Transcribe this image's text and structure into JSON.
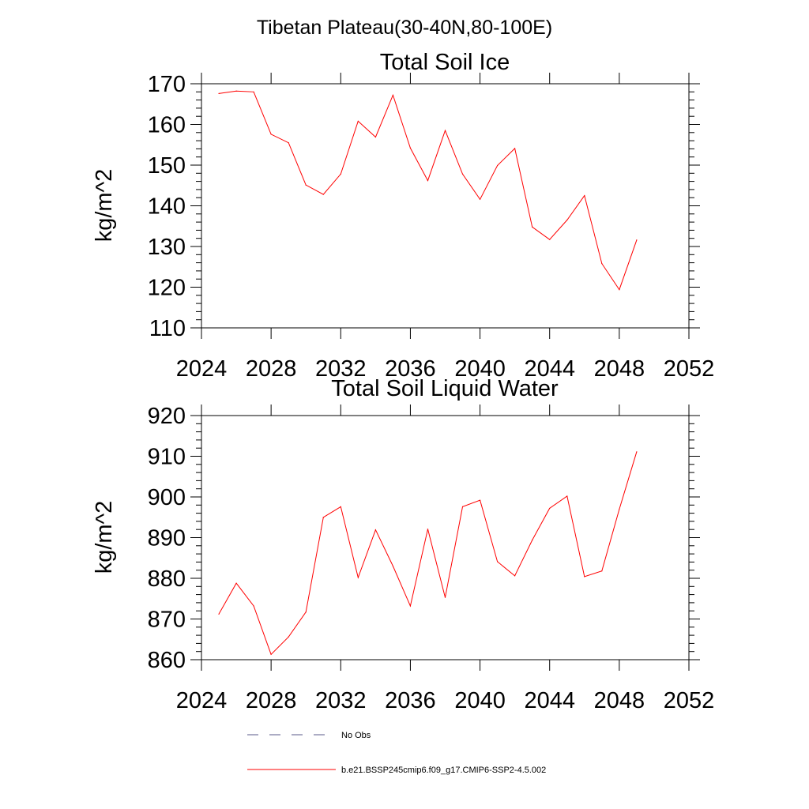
{
  "suptitle": "Tibetan Plateau(30-40N,80-100E)",
  "chart_data": [
    {
      "type": "line",
      "title": "Total Soil Ice",
      "xlabel": "",
      "ylabel": "kg/m^2",
      "xlim": [
        2024,
        2052
      ],
      "ylim": [
        110,
        170
      ],
      "xticks": [
        2024,
        2028,
        2032,
        2036,
        2040,
        2044,
        2048,
        2052
      ],
      "yticks": [
        110,
        120,
        130,
        140,
        150,
        160,
        170
      ],
      "series": [
        {
          "name": "b.e21.BSSP245cmip6.f09_g17.CMIP6-SSP2-4.5.002",
          "color": "#ff0000",
          "x": [
            2025,
            2026,
            2027,
            2028,
            2029,
            2030,
            2031,
            2032,
            2033,
            2034,
            2035,
            2036,
            2037,
            2038,
            2039,
            2040,
            2041,
            2042,
            2043,
            2044,
            2045,
            2046,
            2047,
            2048,
            2049
          ],
          "y": [
            167.6,
            168.2,
            168.0,
            157.6,
            155.5,
            145.1,
            142.8,
            147.8,
            160.8,
            156.9,
            167.2,
            154.2,
            146.2,
            158.5,
            147.8,
            141.6,
            149.9,
            154.1,
            134.8,
            131.7,
            136.5,
            142.5,
            125.8,
            119.4,
            131.6
          ]
        }
      ]
    },
    {
      "type": "line",
      "title": "Total Soil Liquid Water",
      "xlabel": "",
      "ylabel": "kg/m^2",
      "xlim": [
        2024,
        2052
      ],
      "ylim": [
        860,
        920
      ],
      "xticks": [
        2024,
        2028,
        2032,
        2036,
        2040,
        2044,
        2048,
        2052
      ],
      "yticks": [
        860,
        870,
        880,
        890,
        900,
        910,
        920
      ],
      "series": [
        {
          "name": "b.e21.BSSP245cmip6.f09_g17.CMIP6-SSP2-4.5.002",
          "color": "#ff0000",
          "x": [
            2025,
            2026,
            2027,
            2028,
            2029,
            2030,
            2031,
            2032,
            2033,
            2034,
            2035,
            2036,
            2037,
            2038,
            2039,
            2040,
            2041,
            2042,
            2043,
            2044,
            2045,
            2046,
            2047,
            2048,
            2049
          ],
          "y": [
            871.2,
            878.8,
            873.2,
            861.3,
            865.6,
            871.7,
            895.0,
            897.6,
            880.2,
            891.9,
            883.0,
            873.2,
            892.1,
            875.3,
            897.6,
            899.2,
            884.1,
            880.6,
            889.4,
            897.2,
            900.2,
            880.4,
            881.8,
            897.0,
            911.1
          ]
        }
      ]
    }
  ],
  "legend": [
    {
      "label": "No Obs",
      "style": "dashed",
      "color": "#5a5a8a"
    },
    {
      "label": "b.e21.BSSP245cmip6.f09_g17.CMIP6-SSP2-4.5.002",
      "style": "solid",
      "color": "#ff0000"
    }
  ]
}
